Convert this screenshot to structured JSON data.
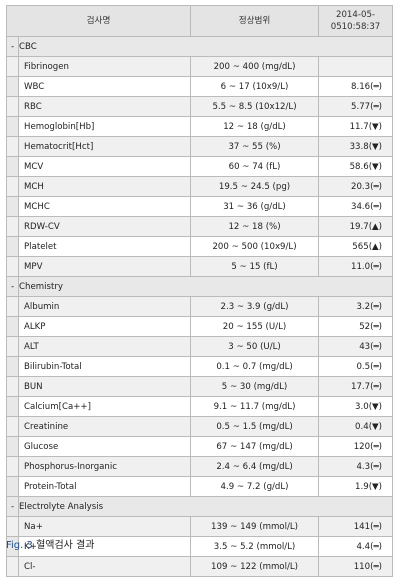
{
  "header": {
    "test_name": "검사명",
    "normal_range": "정상범위",
    "date_line1": "2014-05-",
    "date_line2": "0510:58:37"
  },
  "sections": [
    {
      "title": "CBC",
      "rows": [
        {
          "name": "Fibrinogen",
          "range": "200 ~ 400 (mg/dL)",
          "value": ""
        },
        {
          "name": "WBC",
          "range": "6 ~ 17 (10x9/L)",
          "value": "8.16(═)"
        },
        {
          "name": "RBC",
          "range": "5.5 ~ 8.5 (10x12/L)",
          "value": "5.77(═)"
        },
        {
          "name": "Hemoglobin[Hb]",
          "range": "12 ~ 18 (g/dL)",
          "value": "11.7(▼)"
        },
        {
          "name": "Hematocrit[Hct]",
          "range": "37 ~ 55 (%)",
          "value": "33.8(▼)"
        },
        {
          "name": "MCV",
          "range": "60 ~ 74 (fL)",
          "value": "58.6(▼)"
        },
        {
          "name": "MCH",
          "range": "19.5 ~ 24.5 (pg)",
          "value": "20.3(═)"
        },
        {
          "name": "MCHC",
          "range": "31 ~ 36 (g/dL)",
          "value": "34.6(═)"
        },
        {
          "name": "RDW-CV",
          "range": "12 ~ 18 (%)",
          "value": "19.7(▲)"
        },
        {
          "name": "Platelet",
          "range": "200 ~ 500 (10x9/L)",
          "value": "565(▲)"
        },
        {
          "name": "MPV",
          "range": "5 ~ 15 (fL)",
          "value": "11.0(═)"
        }
      ]
    },
    {
      "title": "Chemistry",
      "rows": [
        {
          "name": "Albumin",
          "range": "2.3 ~ 3.9 (g/dL)",
          "value": "3.2(═)"
        },
        {
          "name": "ALKP",
          "range": "20 ~ 155 (U/L)",
          "value": "52(═)"
        },
        {
          "name": "ALT",
          "range": "3 ~ 50 (U/L)",
          "value": "43(═)"
        },
        {
          "name": "Bilirubin-Total",
          "range": "0.1 ~ 0.7 (mg/dL)",
          "value": "0.5(═)"
        },
        {
          "name": "BUN",
          "range": "5 ~ 30 (mg/dL)",
          "value": "17.7(═)"
        },
        {
          "name": "Calcium[Ca++]",
          "range": "9.1 ~ 11.7 (mg/dL)",
          "value": "3.0(▼)"
        },
        {
          "name": "Creatinine",
          "range": "0.5 ~ 1.5 (mg/dL)",
          "value": "0.4(▼)"
        },
        {
          "name": "Glucose",
          "range": "67 ~ 147 (mg/dL)",
          "value": "120(═)"
        },
        {
          "name": "Phosphorus-Inorganic",
          "range": "2.4 ~ 6.4 (mg/dL)",
          "value": "4.3(═)"
        },
        {
          "name": "Protein-Total",
          "range": "4.9 ~ 7.2 (g/dL)",
          "value": "1.9(▼)"
        }
      ]
    },
    {
      "title": "Electrolyte Analysis",
      "rows": [
        {
          "name": "Na+",
          "range": "139 ~ 149 (mmol/L)",
          "value": "141(═)"
        },
        {
          "name": "K+",
          "range": "3.5 ~ 5.2 (mmol/L)",
          "value": "4.4(═)"
        },
        {
          "name": "Cl-",
          "range": "109 ~ 122 (mmol/L)",
          "value": "110(═)"
        }
      ]
    }
  ],
  "caption": {
    "fig": "Fig. 3",
    "text": "혈액검사 결과"
  }
}
